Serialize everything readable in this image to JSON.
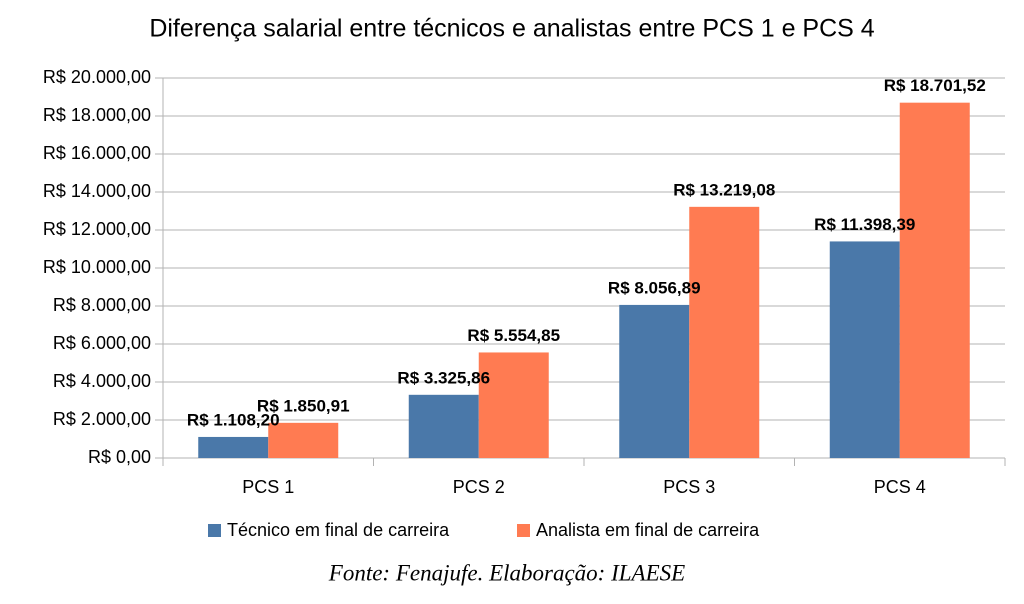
{
  "chart_data": {
    "type": "bar",
    "title": "Diferença salarial entre técnicos e analistas entre PCS 1 e PCS 4",
    "categories": [
      "PCS 1",
      "PCS 2",
      "PCS 3",
      "PCS 4"
    ],
    "series": [
      {
        "name": "Técnico em final de carreira",
        "color": "#4a78a9",
        "values": [
          1108.2,
          3325.86,
          8056.89,
          11398.39
        ],
        "value_labels": [
          "R$ 1.108,20",
          "R$ 3.325,86",
          "R$ 8.056,89",
          "R$ 11.398,39"
        ]
      },
      {
        "name": "Analista em final de carreira",
        "color": "#ff7b52",
        "values": [
          1850.91,
          5554.85,
          13219.08,
          18701.52
        ],
        "value_labels": [
          "R$ 1.850,91",
          "R$ 5.554,85",
          "R$ 13.219,08",
          "R$ 18.701,52"
        ]
      }
    ],
    "ylim": [
      0,
      20000
    ],
    "yticks": [
      {
        "value": 0,
        "label": "R$ 0,00"
      },
      {
        "value": 2000,
        "label": "R$ 2.000,00"
      },
      {
        "value": 4000,
        "label": "R$ 4.000,00"
      },
      {
        "value": 6000,
        "label": "R$ 6.000,00"
      },
      {
        "value": 8000,
        "label": "R$ 8.000,00"
      },
      {
        "value": 10000,
        "label": "R$ 10.000,00"
      },
      {
        "value": 12000,
        "label": "R$ 12.000,00"
      },
      {
        "value": 14000,
        "label": "R$ 14.000,00"
      },
      {
        "value": 16000,
        "label": "R$ 16.000,00"
      },
      {
        "value": 18000,
        "label": "R$ 18.000,00"
      },
      {
        "value": 20000,
        "label": "R$ 20.000,00"
      }
    ],
    "grid": true,
    "legend": "bottom",
    "source": "Fonte: Fenajufe. Elaboração: ILAESE"
  }
}
